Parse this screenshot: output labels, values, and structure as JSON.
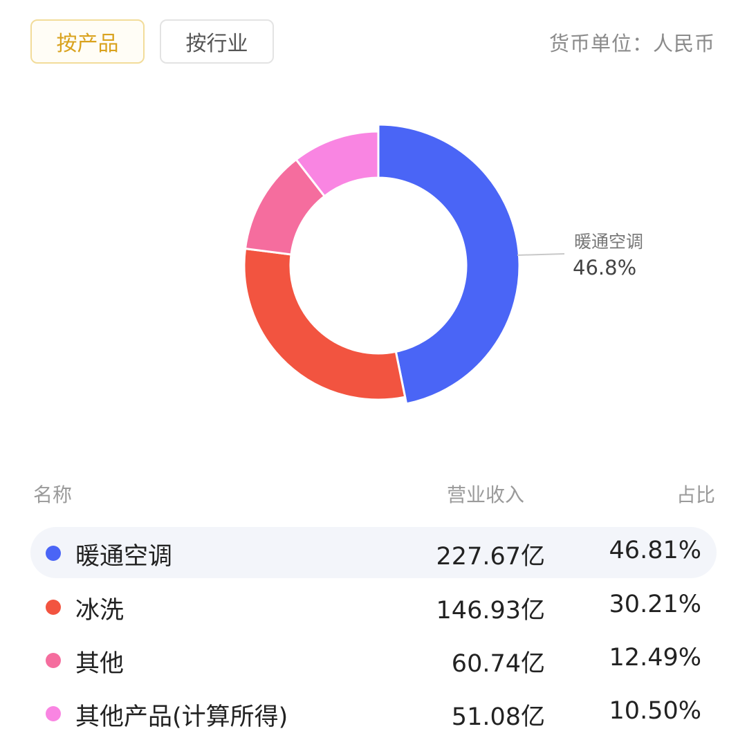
{
  "tabs": [
    {
      "label": "按产品",
      "active": true
    },
    {
      "label": "按行业",
      "active": false
    }
  ],
  "currency_unit": "货币单位：人民币",
  "chart_data": {
    "type": "pie",
    "donut": true,
    "series": [
      {
        "name": "暖通空调",
        "value": 46.81,
        "color": "#4a65f6"
      },
      {
        "name": "冰洗",
        "value": 30.21,
        "color": "#f25440"
      },
      {
        "name": "其他",
        "value": 12.49,
        "color": "#f56d9e"
      },
      {
        "name": "其他产品(计算所得)",
        "value": 10.5,
        "color": "#f985e2"
      }
    ],
    "callout": {
      "label": "暖通空调",
      "value": "46.8%"
    }
  },
  "table": {
    "headers": {
      "name": "名称",
      "revenue": "营业收入",
      "share": "占比"
    },
    "rows": [
      {
        "name": "暖通空调",
        "revenue": "227.67亿",
        "share": "46.81%",
        "color": "#4a65f6"
      },
      {
        "name": "冰洗",
        "revenue": "146.93亿",
        "share": "30.21%",
        "color": "#f25440"
      },
      {
        "name": "其他",
        "revenue": "60.74亿",
        "share": "12.49%",
        "color": "#f56d9e"
      },
      {
        "name": "其他产品(计算所得)",
        "revenue": "51.08亿",
        "share": "10.50%",
        "color": "#f985e2"
      }
    ]
  }
}
